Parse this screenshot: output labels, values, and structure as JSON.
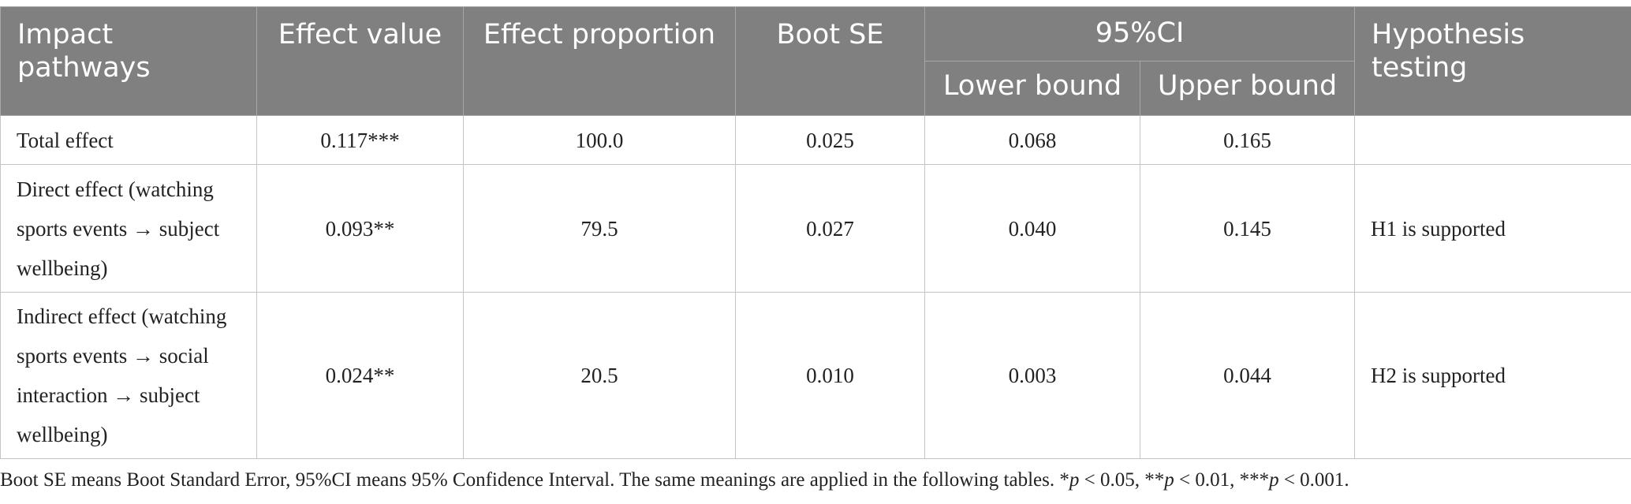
{
  "table": {
    "headers": {
      "pathways": "Impact pathways",
      "effect_value": "Effect value",
      "effect_proportion": "Effect proportion",
      "boot_se": "Boot SE",
      "ci": "95%CI",
      "lower": "Lower bound",
      "upper": "Upper bound",
      "hypothesis": "Hypothesis testing"
    },
    "rows": [
      {
        "pathway": "Total effect",
        "effect_value": "0.117***",
        "effect_proportion": "100.0",
        "boot_se": "0.025",
        "lower": "0.068",
        "upper": "0.165",
        "hypothesis": ""
      },
      {
        "pathway": "Direct effect (watching sports events → subject wellbeing)",
        "effect_value": "0.093**",
        "effect_proportion": "79.5",
        "boot_se": "0.027",
        "lower": "0.040",
        "upper": "0.145",
        "hypothesis": "H1 is supported"
      },
      {
        "pathway": "Indirect effect (watching sports events → social interaction → subject wellbeing)",
        "effect_value": "0.024**",
        "effect_proportion": "20.5",
        "boot_se": "0.010",
        "lower": "0.003",
        "upper": "0.044",
        "hypothesis": "H2 is supported"
      }
    ]
  },
  "note": {
    "text": "Boot SE means Boot Standard Error, 95%CI means 95% Confidence Interval. The same meanings are applied in the following tables. *",
    "p1_sym": "p",
    "p1_rest": " < 0.05, **",
    "p2_sym": "p",
    "p2_rest": " < 0.01, ***",
    "p3_sym": "p",
    "p3_rest": " < 0.001."
  }
}
